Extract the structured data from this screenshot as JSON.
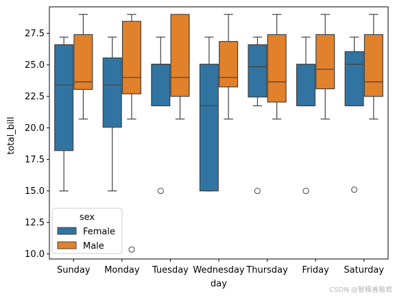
{
  "chart_data": {
    "type": "boxplot",
    "xlabel": "day",
    "ylabel": "total_bill",
    "categories": [
      "Sunday",
      "Monday",
      "Tuesday",
      "Wednesday",
      "Thursday",
      "Friday",
      "Saturday"
    ],
    "ylim": [
      9.6,
      29.6
    ],
    "yticks": [
      10.0,
      12.5,
      15.0,
      17.5,
      20.0,
      22.5,
      25.0,
      27.5
    ],
    "ytick_labels": [
      "10.0",
      "12.5",
      "15.0",
      "17.5",
      "20.0",
      "22.5",
      "25.0",
      "27.5"
    ],
    "grid": false,
    "legend": {
      "title": "sex",
      "placement": "bottom-left"
    },
    "series": [
      {
        "name": "Female",
        "color": "#3274a1",
        "boxes": [
          {
            "whislo": 15.0,
            "q1": 18.2,
            "med": 23.4,
            "q3": 26.6,
            "whishi": 27.2,
            "fliers": []
          },
          {
            "whislo": 15.0,
            "q1": 20.05,
            "med": 23.4,
            "q3": 25.55,
            "whishi": 27.2,
            "fliers": []
          },
          {
            "whislo": 21.75,
            "q1": 21.75,
            "med": 25.05,
            "q3": 25.05,
            "whishi": 27.2,
            "fliers": [
              15.0
            ]
          },
          {
            "whislo": 15.0,
            "q1": 15.0,
            "med": 21.75,
            "q3": 25.05,
            "whishi": 27.2,
            "fliers": []
          },
          {
            "whislo": 21.75,
            "q1": 22.45,
            "med": 24.85,
            "q3": 26.6,
            "whishi": 27.2,
            "fliers": [
              15.0
            ]
          },
          {
            "whislo": 21.75,
            "q1": 21.75,
            "med": 21.75,
            "q3": 25.05,
            "whishi": 27.2,
            "fliers": [
              15.0
            ]
          },
          {
            "whislo": 21.75,
            "q1": 21.75,
            "med": 25.05,
            "q3": 26.05,
            "whishi": 27.2,
            "fliers": [
              15.1
            ]
          }
        ]
      },
      {
        "name": "Male",
        "color": "#e1812c",
        "boxes": [
          {
            "whislo": 20.7,
            "q1": 23.05,
            "med": 23.65,
            "q3": 27.4,
            "whishi": 29.0,
            "fliers": []
          },
          {
            "whislo": 20.7,
            "q1": 22.7,
            "med": 24.0,
            "q3": 28.45,
            "whishi": 29.0,
            "fliers": [
              10.35
            ]
          },
          {
            "whislo": 20.7,
            "q1": 22.5,
            "med": 24.0,
            "q3": 29.0,
            "whishi": 29.0,
            "fliers": []
          },
          {
            "whislo": 20.7,
            "q1": 23.25,
            "med": 24.0,
            "q3": 26.85,
            "whishi": 29.0,
            "fliers": []
          },
          {
            "whislo": 20.7,
            "q1": 22.05,
            "med": 23.65,
            "q3": 27.4,
            "whishi": 29.0,
            "fliers": []
          },
          {
            "whislo": 20.7,
            "q1": 23.1,
            "med": 24.65,
            "q3": 27.4,
            "whishi": 29.0,
            "fliers": []
          },
          {
            "whislo": 20.7,
            "q1": 22.5,
            "med": 23.65,
            "q3": 27.4,
            "whishi": 29.0,
            "fliers": []
          }
        ]
      }
    ]
  },
  "watermark": "CSDN @智模睿脑君"
}
